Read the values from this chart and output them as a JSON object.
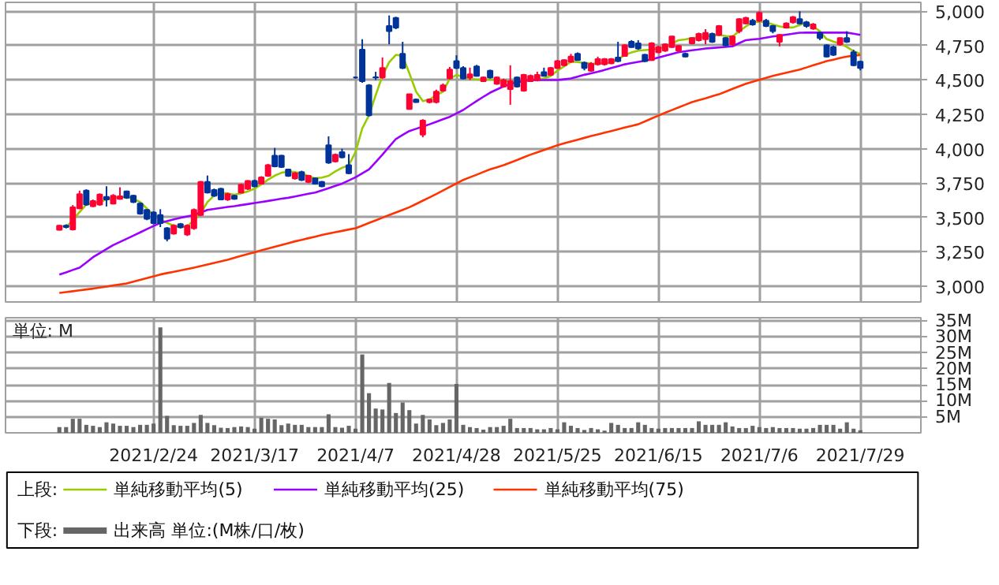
{
  "chart_data": [
    {
      "type": "candlestick",
      "legend_title": "上段:",
      "legend": "bottom",
      "grid": true,
      "tick_labels": "y",
      "categories": [
        null,
        null,
        null,
        null,
        null,
        null,
        null,
        null,
        null,
        null,
        null,
        null,
        null,
        null,
        "2021/2/24",
        null,
        null,
        null,
        null,
        null,
        null,
        null,
        null,
        null,
        null,
        null,
        null,
        null,
        null,
        "2021/3/17",
        null,
        null,
        null,
        null,
        null,
        null,
        null,
        null,
        null,
        null,
        null,
        null,
        null,
        null,
        "2021/4/7",
        null,
        null,
        null,
        null,
        null,
        null,
        null,
        null,
        null,
        null,
        null,
        null,
        null,
        null,
        "2021/4/28",
        null,
        null,
        null,
        null,
        null,
        null,
        null,
        null,
        null,
        null,
        null,
        null,
        null,
        null,
        "2021/5/25",
        null,
        null,
        null,
        null,
        null,
        null,
        null,
        null,
        null,
        null,
        null,
        null,
        null,
        null,
        "2021/6/15",
        null,
        null,
        null,
        null,
        null,
        null,
        null,
        null,
        null,
        null,
        null,
        null,
        null,
        null,
        "2021/7/6",
        null,
        null,
        null,
        null,
        null,
        null,
        null,
        null,
        null,
        null,
        null,
        null,
        null,
        null,
        "2021/7/29"
      ],
      "ylim": [
        2885,
        5065
      ],
      "yticks": [
        {
          "value": 3000,
          "label": "3,000"
        },
        {
          "value": 3250,
          "label": "3,250"
        },
        {
          "value": 3500,
          "label": "3,500"
        },
        {
          "value": 3750,
          "label": "3,750"
        },
        {
          "value": 4000,
          "label": "4,000"
        },
        {
          "value": 4250,
          "label": "4,250"
        },
        {
          "value": 4500,
          "label": "4,500"
        },
        {
          "value": 4750,
          "label": "4,750"
        },
        {
          "value": 5000,
          "label": "5,000"
        }
      ],
      "ohlc": [
        [
          3410,
          3445,
          3405,
          3440
        ],
        [
          3440,
          3450,
          3420,
          3430
        ],
        [
          3413,
          3590,
          3405,
          3574
        ],
        [
          3566,
          3695,
          3560,
          3670
        ],
        [
          3696,
          3705,
          3585,
          3593
        ],
        [
          3582,
          3630,
          3575,
          3620
        ],
        [
          3593,
          3675,
          3585,
          3666
        ],
        [
          3650,
          3727,
          3580,
          3631
        ],
        [
          3601,
          3670,
          3595,
          3658
        ],
        [
          3635,
          3720,
          3630,
          3654
        ],
        [
          3689,
          3695,
          3635,
          3643
        ],
        [
          3658,
          3665,
          3605,
          3612
        ],
        [
          3601,
          3610,
          3520,
          3528
        ],
        [
          3555,
          3560,
          3480,
          3490
        ],
        [
          3536,
          3545,
          3450,
          3459
        ],
        [
          3517,
          3560,
          3430,
          3459
        ],
        [
          3421,
          3430,
          3326,
          3345
        ],
        [
          3383,
          3450,
          3375,
          3440
        ],
        [
          3452,
          3460,
          3420,
          3429
        ],
        [
          3375,
          3450,
          3365,
          3440
        ],
        [
          3421,
          3565,
          3410,
          3555
        ],
        [
          3517,
          3765,
          3510,
          3758
        ],
        [
          3758,
          3805,
          3675,
          3681
        ],
        [
          3700,
          3710,
          3650,
          3658
        ],
        [
          3708,
          3715,
          3625,
          3631
        ],
        [
          3631,
          3680,
          3620,
          3670
        ],
        [
          3658,
          3665,
          3630,
          3635
        ],
        [
          3681,
          3745,
          3675,
          3738
        ],
        [
          3708,
          3770,
          3700,
          3765
        ],
        [
          3765,
          3775,
          3720,
          3727
        ],
        [
          3746,
          3800,
          3740,
          3792
        ],
        [
          3803,
          3890,
          3795,
          3880
        ],
        [
          3949,
          4006,
          3865,
          3872
        ],
        [
          3949,
          3955,
          3860,
          3868
        ],
        [
          3849,
          3855,
          3795,
          3803
        ],
        [
          3784,
          3830,
          3775,
          3822
        ],
        [
          3830,
          3840,
          3765,
          3773
        ],
        [
          3758,
          3810,
          3750,
          3803
        ],
        [
          3784,
          3790,
          3740,
          3746
        ],
        [
          3758,
          3765,
          3720,
          3727
        ],
        [
          4025,
          4090,
          3890,
          3899
        ],
        [
          3907,
          3965,
          3900,
          3956
        ],
        [
          3975,
          4000,
          3930,
          3937
        ],
        [
          3880,
          3960,
          3815,
          3822
        ],
        [
          4518,
          4525,
          4510,
          4518
        ],
        [
          4721,
          4797,
          4480,
          4492
        ],
        [
          4461,
          4470,
          4235,
          4243
        ],
        [
          4520,
          4560,
          4500,
          4518
        ],
        [
          4518,
          4664,
          4510,
          4587
        ],
        [
          4893,
          4970,
          4760,
          4855
        ],
        [
          4951,
          4960,
          4870,
          4882
        ],
        [
          4690,
          4778,
          4580,
          4587
        ],
        [
          4289,
          4400,
          4285,
          4396
        ],
        [
          4358,
          4365,
          4335,
          4339
        ],
        [
          4102,
          4215,
          4083,
          4205
        ],
        [
          4339,
          4365,
          4330,
          4358
        ],
        [
          4339,
          4430,
          4330,
          4415
        ],
        [
          4423,
          4475,
          4415,
          4461
        ],
        [
          4511,
          4595,
          4505,
          4576
        ],
        [
          4637,
          4680,
          4580,
          4587
        ],
        [
          4587,
          4600,
          4505,
          4511
        ],
        [
          4518,
          4590,
          4500,
          4541
        ],
        [
          4599,
          4610,
          4525,
          4530
        ],
        [
          4492,
          4525,
          4485,
          4518
        ],
        [
          4568,
          4575,
          4510,
          4518
        ],
        [
          4472,
          4525,
          4465,
          4518
        ],
        [
          4453,
          4510,
          4445,
          4499
        ],
        [
          4434,
          4607,
          4320,
          4492
        ],
        [
          4518,
          4525,
          4445,
          4453
        ],
        [
          4423,
          4545,
          4415,
          4537
        ],
        [
          4492,
          4540,
          4485,
          4530
        ],
        [
          4499,
          4560,
          4490,
          4537
        ],
        [
          4557,
          4590,
          4525,
          4530
        ],
        [
          4537,
          4595,
          4530,
          4587
        ],
        [
          4587,
          4645,
          4580,
          4637
        ],
        [
          4607,
          4650,
          4600,
          4645
        ],
        [
          4633,
          4690,
          4625,
          4671
        ],
        [
          4690,
          4700,
          4640,
          4645
        ],
        [
          4625,
          4635,
          4570,
          4587
        ],
        [
          4568,
          4630,
          4560,
          4618
        ],
        [
          4614,
          4670,
          4605,
          4652
        ],
        [
          4614,
          4660,
          4605,
          4652
        ],
        [
          4622,
          4660,
          4615,
          4652
        ],
        [
          4664,
          4778,
          4630,
          4637
        ],
        [
          4675,
          4760,
          4670,
          4752
        ],
        [
          4778,
          4790,
          4735,
          4740
        ],
        [
          4767,
          4790,
          4720,
          4729
        ],
        [
          4683,
          4690,
          4630,
          4637
        ],
        [
          4645,
          4775,
          4640,
          4767
        ],
        [
          4702,
          4750,
          4695,
          4740
        ],
        [
          4713,
          4765,
          4705,
          4759
        ],
        [
          4740,
          4820,
          4735,
          4817
        ],
        [
          4713,
          4752,
          4705,
          4748
        ],
        [
          4690,
          4700,
          4665,
          4671
        ],
        [
          4767,
          4810,
          4760,
          4805
        ],
        [
          4790,
          4845,
          4780,
          4836
        ],
        [
          4797,
          4870,
          4760,
          4843
        ],
        [
          4836,
          4845,
          4770,
          4778
        ],
        [
          4828,
          4900,
          4820,
          4893
        ],
        [
          4805,
          4812,
          4745,
          4752
        ],
        [
          4759,
          4825,
          4750,
          4817
        ],
        [
          4855,
          4950,
          4840,
          4943
        ],
        [
          4912,
          4960,
          4905,
          4951
        ],
        [
          4931,
          4945,
          4895,
          4905
        ],
        [
          4931,
          5000,
          4920,
          4989
        ],
        [
          4931,
          4945,
          4885,
          4893
        ],
        [
          4893,
          4900,
          4840,
          4855
        ],
        [
          4778,
          4835,
          4745,
          4828
        ],
        [
          4882,
          4920,
          4875,
          4912
        ],
        [
          4920,
          4965,
          4910,
          4958
        ],
        [
          4943,
          5000,
          4905,
          4912
        ],
        [
          4920,
          4930,
          4880,
          4893
        ],
        [
          4874,
          4915,
          4865,
          4905
        ],
        [
          4843,
          4850,
          4790,
          4805
        ],
        [
          4752,
          4760,
          4665,
          4671
        ],
        [
          4740,
          4750,
          4675,
          4683
        ],
        [
          4759,
          4810,
          4750,
          4805
        ],
        [
          4805,
          4855,
          4770,
          4778
        ],
        [
          4702,
          4720,
          4600,
          4607
        ],
        [
          4633,
          4640,
          4570,
          4587
        ]
      ],
      "colors": [
        "#ff0033",
        "#003399",
        "#ff0033",
        "#ff0033",
        "#003399",
        "#ff0033",
        "#ff0033",
        "#003399",
        "#ff0033",
        "#ff0033",
        "#003399",
        "#003399",
        "#003399",
        "#003399",
        "#003399",
        "#003399",
        "#003399",
        "#ff0033",
        "#003399",
        "#ff0033",
        "#ff0033",
        "#ff0033",
        "#003399",
        "#003399",
        "#003399",
        "#ff0033",
        "#003399",
        "#ff0033",
        "#ff0033",
        "#003399",
        "#ff0033",
        "#ff0033",
        "#003399",
        "#003399",
        "#003399",
        "#ff0033",
        "#003399",
        "#ff0033",
        "#003399",
        "#003399",
        "#003399",
        "#ff0033",
        "#003399",
        "#003399",
        "#003399",
        "#003399",
        "#003399",
        "#003399",
        "#ff0033",
        "#003399",
        "#003399",
        "#003399",
        "#ff0033",
        "#003399",
        "#ff0033",
        "#ff0033",
        "#ff0033",
        "#ff0033",
        "#ff0033",
        "#003399",
        "#003399",
        "#ff0033",
        "#003399",
        "#ff0033",
        "#003399",
        "#ff0033",
        "#ff0033",
        "#ff0033",
        "#003399",
        "#ff0033",
        "#ff0033",
        "#ff0033",
        "#003399",
        "#ff0033",
        "#ff0033",
        "#ff0033",
        "#ff0033",
        "#003399",
        "#003399",
        "#ff0033",
        "#ff0033",
        "#ff0033",
        "#ff0033",
        "#003399",
        "#ff0033",
        "#003399",
        "#003399",
        "#003399",
        "#ff0033",
        "#ff0033",
        "#ff0033",
        "#ff0033",
        "#ff0033",
        "#003399",
        "#ff0033",
        "#ff0033",
        "#ff0033",
        "#003399",
        "#ff0033",
        "#003399",
        "#ff0033",
        "#ff0033",
        "#ff0033",
        "#003399",
        "#ff0033",
        "#003399",
        "#003399",
        "#ff0033",
        "#ff0033",
        "#ff0033",
        "#003399",
        "#003399",
        "#ff0033",
        "#003399",
        "#003399",
        "#003399",
        "#ff0033",
        "#003399",
        "#003399",
        "#003399"
      ],
      "series": [
        {
          "name": "単純移動平均(5)",
          "type": "line",
          "color": "#99cc00",
          "values": [
            null,
            3430,
            3480,
            3540,
            3593,
            3605,
            3612,
            3630,
            3643,
            3648,
            3650,
            3635,
            3612,
            3565,
            3517,
            3490,
            3460,
            3440,
            3429,
            3435,
            3480,
            3530,
            3612,
            3660,
            3681,
            3675,
            3665,
            3675,
            3689,
            3710,
            3740,
            3775,
            3804,
            3825,
            3834,
            3830,
            3822,
            3800,
            3785,
            3790,
            3803,
            3835,
            3861,
            3880,
            3976,
            4148,
            4243,
            4390,
            4530,
            4630,
            4683,
            4675,
            4549,
            4415,
            4347,
            4358,
            4390,
            4415,
            4511,
            4537,
            4522,
            4510,
            4503,
            4503,
            4503,
            4500,
            4495,
            4492,
            4490,
            4495,
            4499,
            4505,
            4511,
            4530,
            4568,
            4600,
            4633,
            4630,
            4625,
            4620,
            4618,
            4622,
            4626,
            4650,
            4683,
            4700,
            4714,
            4718,
            4721,
            4730,
            4740,
            4765,
            4790,
            4795,
            4805,
            4810,
            4817,
            4822,
            4828,
            4820,
            4817,
            4855,
            4890,
            4920,
            4925,
            4920,
            4905,
            4890,
            4882,
            4882,
            4900,
            4920,
            4890,
            4855,
            4798,
            4780,
            4767,
            4740,
            4710,
            4691
          ]
        },
        {
          "name": "単純移動平均(25)",
          "type": "line",
          "color": "#9900ff",
          "values": [
            3085,
            3100,
            3118,
            3135,
            3172,
            3211,
            3240,
            3270,
            3299,
            3322,
            3345,
            3368,
            3391,
            3415,
            3438,
            3460,
            3473,
            3486,
            3498,
            3508,
            3517,
            3536,
            3555,
            3562,
            3569,
            3576,
            3582,
            3590,
            3597,
            3605,
            3612,
            3620,
            3628,
            3636,
            3643,
            3652,
            3662,
            3672,
            3681,
            3697,
            3713,
            3730,
            3746,
            3769,
            3792,
            3821,
            3850,
            3903,
            3957,
            4014,
            4071,
            4100,
            4129,
            4145,
            4162,
            4178,
            4196,
            4214,
            4232,
            4257,
            4282,
            4315,
            4347,
            4378,
            4408,
            4431,
            4454,
            4470,
            4484,
            4492,
            4500,
            4500,
            4500,
            4500,
            4500,
            4505,
            4511,
            4525,
            4538,
            4549,
            4560,
            4573,
            4587,
            4600,
            4614,
            4623,
            4632,
            4641,
            4650,
            4663,
            4676,
            4689,
            4702,
            4709,
            4716,
            4722,
            4729,
            4733,
            4737,
            4741,
            4745,
            4768,
            4790,
            4795,
            4800,
            4808,
            4817,
            4823,
            4830,
            4837,
            4844,
            4845,
            4845,
            4845,
            4845,
            4845,
            4845,
            4845,
            4837,
            4828
          ]
        },
        {
          "name": "単純移動平均(75)",
          "type": "line",
          "color": "#ff3300",
          "values": [
            2951,
            2957,
            2963,
            2970,
            2976,
            2982,
            2990,
            2997,
            3005,
            3012,
            3020,
            3033,
            3046,
            3059,
            3072,
            3085,
            3095,
            3105,
            3115,
            3125,
            3135,
            3146,
            3158,
            3169,
            3181,
            3192,
            3206,
            3220,
            3233,
            3247,
            3261,
            3274,
            3287,
            3300,
            3313,
            3326,
            3337,
            3349,
            3360,
            3372,
            3383,
            3393,
            3402,
            3412,
            3421,
            3440,
            3460,
            3479,
            3498,
            3517,
            3536,
            3555,
            3574,
            3598,
            3622,
            3646,
            3670,
            3696,
            3722,
            3747,
            3773,
            3792,
            3811,
            3831,
            3850,
            3865,
            3880,
            3899,
            3918,
            3938,
            3957,
            3974,
            3991,
            4008,
            4025,
            4039,
            4052,
            4066,
            4079,
            4092,
            4104,
            4117,
            4129,
            4141,
            4154,
            4166,
            4178,
            4199,
            4220,
            4241,
            4262,
            4281,
            4301,
            4320,
            4339,
            4353,
            4367,
            4382,
            4396,
            4415,
            4435,
            4454,
            4473,
            4487,
            4502,
            4516,
            4530,
            4542,
            4553,
            4565,
            4576,
            4591,
            4607,
            4622,
            4637,
            4648,
            4660,
            4671,
            4677,
            4683
          ]
        }
      ]
    },
    {
      "type": "bar",
      "legend_title": "下段:",
      "legend": "bottom",
      "grid": true,
      "annotations": [
        "単位: M"
      ],
      "categories": [
        null,
        null,
        null,
        null,
        null,
        null,
        null,
        null,
        null,
        null,
        null,
        null,
        null,
        null,
        "2021/2/24",
        null,
        null,
        null,
        null,
        null,
        null,
        null,
        null,
        null,
        null,
        null,
        null,
        null,
        null,
        "2021/3/17",
        null,
        null,
        null,
        null,
        null,
        null,
        null,
        null,
        null,
        null,
        null,
        null,
        null,
        null,
        "2021/4/7",
        null,
        null,
        null,
        null,
        null,
        null,
        null,
        null,
        null,
        null,
        null,
        null,
        null,
        null,
        "2021/4/28",
        null,
        null,
        null,
        null,
        null,
        null,
        null,
        null,
        null,
        null,
        null,
        null,
        null,
        null,
        "2021/5/25",
        null,
        null,
        null,
        null,
        null,
        null,
        null,
        null,
        null,
        null,
        null,
        null,
        null,
        null,
        "2021/6/15",
        null,
        null,
        null,
        null,
        null,
        null,
        null,
        null,
        null,
        null,
        null,
        null,
        null,
        null,
        "2021/7/6",
        null,
        null,
        null,
        null,
        null,
        null,
        null,
        null,
        null,
        null,
        null,
        null,
        null,
        null,
        "2021/7/29"
      ],
      "ylim": [
        0,
        36
      ],
      "yticks": [
        {
          "value": 5,
          "label": "5M"
        },
        {
          "value": 10,
          "label": "10M"
        },
        {
          "value": 15,
          "label": "15M"
        },
        {
          "value": 20,
          "label": "20M"
        },
        {
          "value": 25,
          "label": "25M"
        },
        {
          "value": 30,
          "label": "30M"
        },
        {
          "value": 35,
          "label": "35M"
        }
      ],
      "series": [
        {
          "name": "出来高 単位:(M株/口/枚)",
          "color": "#666666",
          "values": [
            1.8,
            1.8,
            4.4,
            4.4,
            2.5,
            2.2,
            1.8,
            3.3,
            2.9,
            2.2,
            2.2,
            1.8,
            2.5,
            2.5,
            2.9,
            33,
            5.3,
            2.4,
            2.2,
            2.2,
            3.1,
            5.6,
            3.1,
            2.4,
            1.6,
            1.5,
            1.8,
            2,
            1.8,
            1.3,
            4.7,
            4.4,
            4.2,
            2.4,
            2.9,
            2.5,
            2.5,
            1.8,
            1.8,
            1.8,
            5.8,
            1.8,
            1.6,
            2.2,
            1.3,
            24.5,
            12.4,
            7.6,
            7.3,
            15.6,
            6.2,
            9.5,
            7.1,
            2.9,
            5.6,
            4.2,
            2.4,
            3.1,
            4.2,
            15.3,
            2.5,
            1.8,
            1.5,
            1,
            1.8,
            1.8,
            2.2,
            4.4,
            1.5,
            1.5,
            1.5,
            1.1,
            1.1,
            1.5,
            1.1,
            3.3,
            2.2,
            1.5,
            0.9,
            1.5,
            1.1,
            0.7,
            3.1,
            2.5,
            1.5,
            1.5,
            3.3,
            2.5,
            1.5,
            1.3,
            1.5,
            1.5,
            1.5,
            1.5,
            1.5,
            3.6,
            2.5,
            2.5,
            2.5,
            3.3,
            2,
            1.5,
            1.5,
            2.2,
            1.8,
            1.5,
            1.8,
            1.5,
            1.5,
            1.5,
            1.3,
            1.3,
            1.5,
            2.5,
            2.5,
            2.5,
            1.3,
            3.3,
            1.3,
            0.8
          ]
        }
      ]
    }
  ]
}
